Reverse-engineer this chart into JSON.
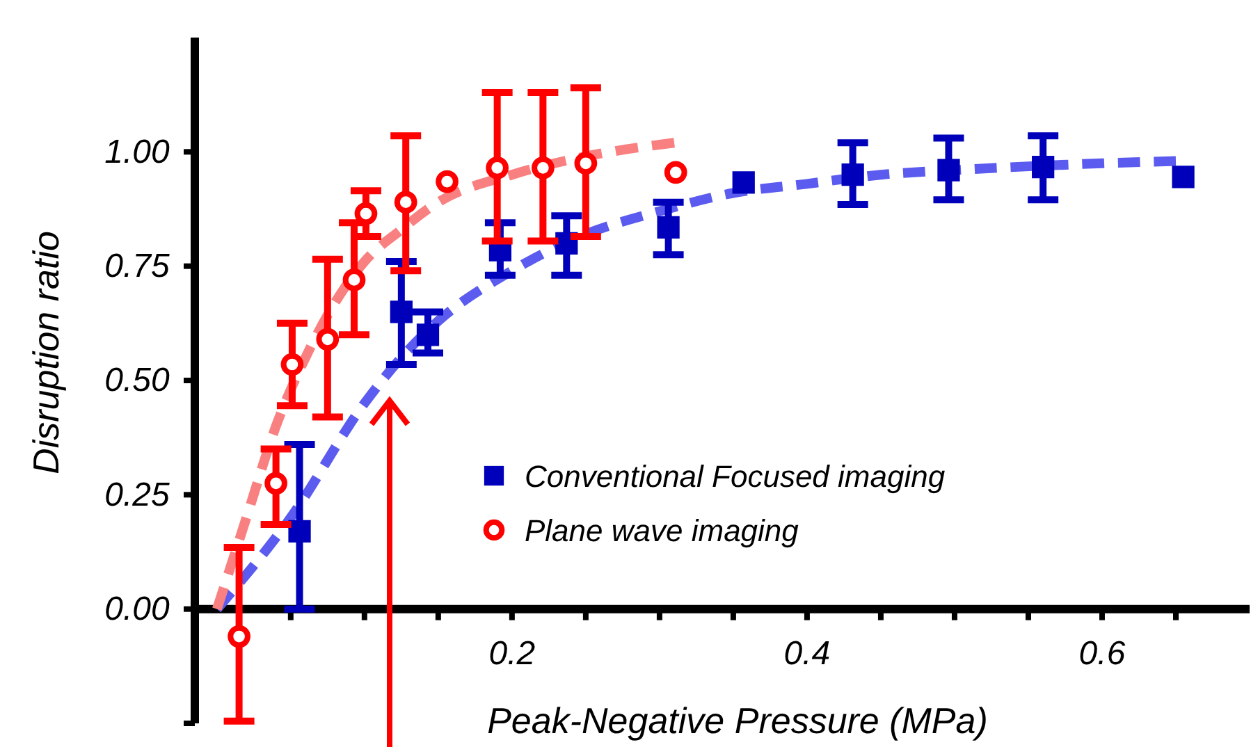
{
  "chart_data": {
    "type": "scatter",
    "xlabel": "Peak-Negative Pressure (MPa)",
    "ylabel": "Disruption ratio",
    "xlim": [
      -0.015,
      0.7
    ],
    "ylim": [
      -0.25,
      1.25
    ],
    "xticks": [
      {
        "value": 0.05,
        "label": null
      },
      {
        "value": 0.1,
        "label": null
      },
      {
        "value": 0.15,
        "label": null
      },
      0.2,
      {
        "value": 0.25,
        "label": null
      },
      {
        "value": 0.3,
        "label": null
      },
      {
        "value": 0.35,
        "label": null
      },
      0.4,
      {
        "value": 0.45,
        "label": null
      },
      {
        "value": 0.5,
        "label": null
      },
      {
        "value": 0.55,
        "label": null
      },
      0.6,
      {
        "value": 0.65,
        "label": null
      }
    ],
    "yticks": [
      {
        "value": -0.25,
        "label": null
      },
      {
        "value": 0,
        "label": "0.00"
      },
      {
        "value": 0.25,
        "label": "0.25"
      },
      {
        "value": 0.5,
        "label": "0.50"
      },
      {
        "value": 0.75,
        "label": "0.75"
      },
      {
        "value": 1,
        "label": "1.00"
      }
    ],
    "grid": false,
    "legend": "right",
    "series": [
      {
        "type": "line",
        "line_style": "dashed",
        "marker": "none",
        "color": "#5b5bef",
        "x": [
          0,
          0.05,
          0.1,
          0.125,
          0.15,
          0.2,
          0.25,
          0.3,
          0.35,
          0.4,
          0.45,
          0.5,
          0.6,
          0.65
        ],
        "values": [
          0,
          0.2,
          0.45,
          0.55,
          0.63,
          0.74,
          0.82,
          0.87,
          0.91,
          0.93,
          0.95,
          0.96,
          0.975,
          0.98
        ]
      },
      {
        "type": "line",
        "line_style": "dashed",
        "marker": "none",
        "color": "#f98080",
        "x": [
          0,
          0.02,
          0.04,
          0.06,
          0.08,
          0.1,
          0.125,
          0.15,
          0.2,
          0.25,
          0.31
        ],
        "values": [
          0,
          0.2,
          0.4,
          0.55,
          0.67,
          0.76,
          0.83,
          0.89,
          0.95,
          0.99,
          1.02
        ]
      },
      {
        "name": "Conventional Focused imaging",
        "marker": "square",
        "color": "#0000bb",
        "x": [
          0.056,
          0.125,
          0.143,
          0.192,
          0.237,
          0.306,
          0.357,
          0.431,
          0.496,
          0.56,
          0.655
        ],
        "values": [
          0.17,
          0.65,
          0.6,
          0.785,
          0.8,
          0.835,
          0.933,
          0.95,
          0.96,
          0.967,
          0.945
        ],
        "errors": [
          [
            0,
            0.36
          ],
          [
            0.535,
            0.76
          ],
          [
            0.56,
            0.65
          ],
          [
            0.73,
            0.845
          ],
          [
            0.73,
            0.86
          ],
          [
            0.775,
            0.89
          ],
          null,
          [
            0.885,
            1.02
          ],
          [
            0.895,
            1.03
          ],
          [
            0.895,
            1.035
          ],
          null
        ]
      },
      {
        "name": "Plane wave imaging",
        "marker": "circle",
        "color": "#ff0000",
        "x": [
          0.015,
          0.04,
          0.051,
          0.075,
          0.093,
          0.101,
          0.128,
          0.156,
          0.19,
          0.221,
          0.25,
          0.311
        ],
        "values": [
          -0.06,
          0.275,
          0.535,
          0.59,
          0.72,
          0.865,
          0.89,
          0.935,
          0.965,
          0.965,
          0.975,
          0.955
        ],
        "errors": [
          [
            -0.245,
            0.135
          ],
          [
            0.185,
            0.35
          ],
          [
            0.445,
            0.625
          ],
          [
            0.42,
            0.765
          ],
          [
            0.6,
            0.845
          ],
          [
            0.815,
            0.915
          ],
          [
            0.74,
            1.035
          ],
          null,
          [
            0.805,
            1.13
          ],
          [
            0.805,
            1.13
          ],
          [
            0.815,
            1.14
          ],
          null
        ]
      }
    ]
  }
}
